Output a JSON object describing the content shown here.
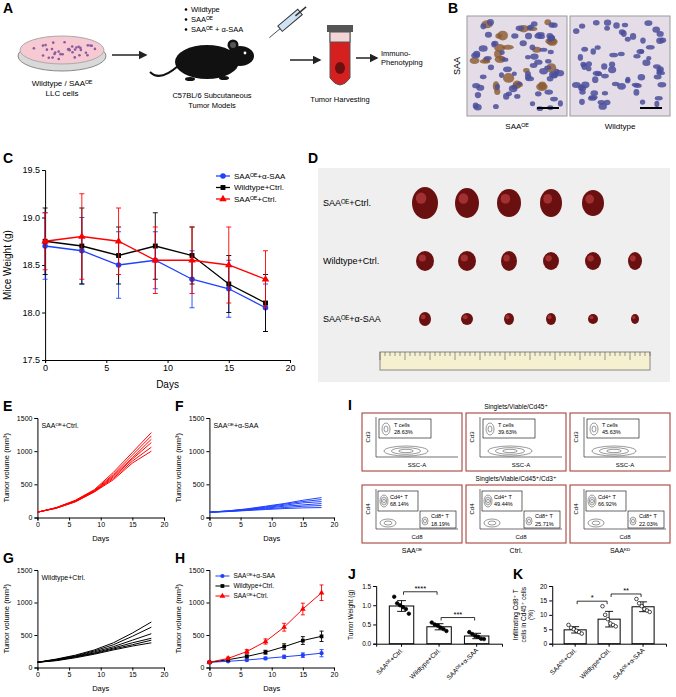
{
  "schematic": {
    "panel": "A",
    "cell_label": [
      "Wildtype / SAAᴼᴱ",
      "LLC cells"
    ],
    "groups": [
      "Wildtype",
      "SAAᴼᴱ",
      "SAAᴼᴱ + α-SAA"
    ],
    "mouse_label": [
      "C57BL/6 Subcutaneous",
      "Tumor Models"
    ],
    "harvest_label": "Tumor Harvesting",
    "readout_label": [
      "Immuno-",
      "Phenotyping"
    ]
  },
  "ihc": {
    "panel": "B",
    "stain": "SAA",
    "images": [
      "SAAᴼᴱ",
      "Wildtype"
    ]
  },
  "tumor_photo": {
    "panel": "D",
    "rows": [
      "SAAᴼᴱ+Ctrl.",
      "Wildtype+Ctrl.",
      "SAAᴼᴱ+α-SAA"
    ]
  },
  "flow": {
    "panel": "I",
    "samples": [
      "SAAᴼᴱ",
      "Ctrl.",
      "SAAᴷᴰ"
    ],
    "rows": [
      {
        "gate": "Singlets/Viable/Cd45⁺",
        "x_label": "SSC-A",
        "y_label": "Cd3",
        "plots": [
          {
            "populations": [
              {
                "name": "T cells",
                "percent": "28.63%"
              }
            ]
          },
          {
            "populations": [
              {
                "name": "T cells",
                "percent": "39.63%"
              }
            ]
          },
          {
            "populations": [
              {
                "name": "T cells",
                "percent": "45.63%"
              }
            ]
          }
        ]
      },
      {
        "gate": "Singlets/Viable/Cd45⁺/Cd3⁺",
        "x_label": "Cd8",
        "y_label": "Cd4",
        "plots": [
          {
            "populations": [
              {
                "name": "Cd4⁺ T",
                "percent": "68.14%"
              },
              {
                "name": "Cd8⁺ T",
                "percent": "18.19%"
              }
            ]
          },
          {
            "populations": [
              {
                "name": "Cd4⁺ T",
                "percent": "49.44%"
              },
              {
                "name": "Cd8⁺ T",
                "percent": "25.71%"
              }
            ]
          },
          {
            "populations": [
              {
                "name": "Cd4⁺ T",
                "percent": "66.92%"
              },
              {
                "name": "Cd8⁺ T",
                "percent": "22.03%"
              }
            ]
          }
        ]
      }
    ]
  },
  "chart_data": [
    {
      "panel": "C",
      "type": "line",
      "x_label": "Days",
      "y_label": "Mice Weight (g)",
      "x": [
        0,
        3,
        6,
        9,
        12,
        15,
        18
      ],
      "xlim": [
        0,
        20
      ],
      "xticks": [
        0,
        5,
        10,
        15,
        20
      ],
      "ylim": [
        17.5,
        19.5
      ],
      "yticks": [
        17.5,
        {
          "value": 18,
          "label": "18.0"
        },
        18.5,
        {
          "value": 19,
          "label": "19.0"
        },
        19.5
      ],
      "legend": "upper right",
      "series": [
        {
          "name": "SAAᴼᴱ+α-SAA",
          "color": "#2040ff",
          "marker": "circle",
          "values": [
            18.7,
            18.65,
            18.5,
            18.55,
            18.35,
            18.25,
            18.05
          ],
          "errors": [
            0.35,
            0.35,
            0.35,
            0.3,
            0.3,
            0.3,
            0.25
          ]
        },
        {
          "name": "Wildtype+Ctrl.",
          "color": "#000000",
          "marker": "square",
          "values": [
            18.75,
            18.7,
            18.6,
            18.7,
            18.6,
            18.3,
            18.1
          ],
          "errors": [
            0.35,
            0.4,
            0.3,
            0.35,
            0.3,
            0.3,
            0.3
          ]
        },
        {
          "name": "SAAᴼᴱ+Ctrl.",
          "color": "#ff0000",
          "marker": "triangle",
          "values": [
            18.75,
            18.8,
            18.75,
            18.55,
            18.55,
            18.5,
            18.35
          ],
          "errors": [
            0.3,
            0.45,
            0.35,
            0.35,
            0.35,
            0.4,
            0.3
          ]
        }
      ]
    },
    {
      "panel": "E",
      "type": "line",
      "annotation": "SAAᴼᴱ+Ctrl.",
      "color": "#ff0000",
      "x_label": "Days",
      "y_label": "Tumor volume (mm³)",
      "x": [
        0,
        3,
        6,
        9,
        12,
        15,
        18
      ],
      "xlim": [
        0,
        20
      ],
      "xticks": [
        0,
        5,
        10,
        15,
        20
      ],
      "ylim": [
        0,
        1500
      ],
      "yticks": [
        0,
        500,
        1000,
        1500
      ],
      "series": [
        {
          "values": [
            80,
            150,
            260,
            420,
            680,
            980,
            1280
          ]
        },
        {
          "values": [
            80,
            150,
            255,
            410,
            650,
            940,
            1230
          ]
        },
        {
          "values": [
            80,
            145,
            250,
            400,
            630,
            900,
            1180
          ]
        },
        {
          "values": [
            80,
            145,
            245,
            395,
            610,
            880,
            1130
          ]
        },
        {
          "values": [
            80,
            140,
            240,
            390,
            590,
            850,
            1060
          ]
        },
        {
          "values": [
            80,
            140,
            235,
            385,
            570,
            820,
            1000
          ]
        }
      ]
    },
    {
      "panel": "F",
      "type": "line",
      "annotation": "SAAᴼᴱ+α-SAA",
      "color": "#2040ff",
      "x_label": "Days",
      "y_label": "Tumor volume (mm³)",
      "x": [
        0,
        3,
        6,
        9,
        12,
        15,
        18
      ],
      "xlim": [
        0,
        20
      ],
      "xticks": [
        0,
        5,
        10,
        15,
        20
      ],
      "ylim": [
        0,
        1500
      ],
      "yticks": [
        0,
        500,
        1000,
        1500
      ],
      "series": [
        {
          "values": [
            80,
            100,
            130,
            170,
            210,
            260,
            300
          ]
        },
        {
          "values": [
            80,
            100,
            125,
            160,
            200,
            240,
            270
          ]
        },
        {
          "values": [
            80,
            95,
            120,
            150,
            185,
            220,
            240
          ]
        },
        {
          "values": [
            80,
            95,
            115,
            140,
            170,
            190,
            210
          ]
        },
        {
          "values": [
            80,
            90,
            110,
            130,
            150,
            170,
            180
          ]
        },
        {
          "values": [
            80,
            90,
            105,
            120,
            135,
            145,
            150
          ]
        }
      ]
    },
    {
      "panel": "G",
      "type": "line",
      "annotation": "Wildtype+Ctrl.",
      "color": "#000000",
      "x_label": "Days",
      "y_label": "Tumor volume (mm³)",
      "x": [
        0,
        3,
        6,
        9,
        12,
        15,
        18
      ],
      "xlim": [
        0,
        20
      ],
      "xticks": [
        0,
        5,
        10,
        15,
        20
      ],
      "ylim": [
        0,
        1500
      ],
      "yticks": [
        0,
        500,
        1000,
        1500
      ],
      "series": [
        {
          "values": [
            80,
            130,
            190,
            270,
            380,
            530,
            700
          ]
        },
        {
          "values": [
            80,
            125,
            180,
            255,
            350,
            480,
            620
          ]
        },
        {
          "values": [
            80,
            120,
            170,
            240,
            320,
            420,
            520
          ]
        },
        {
          "values": [
            80,
            115,
            165,
            225,
            300,
            380,
            450
          ]
        },
        {
          "values": [
            80,
            110,
            160,
            215,
            285,
            350,
            420
          ]
        },
        {
          "values": [
            80,
            105,
            150,
            205,
            270,
            330,
            380
          ]
        }
      ]
    },
    {
      "panel": "H",
      "type": "line",
      "x_label": "Days",
      "y_label": "Tumor volume (mm³)",
      "x": [
        0,
        3,
        6,
        9,
        12,
        15,
        18
      ],
      "xlim": [
        0,
        20
      ],
      "xticks": [
        0,
        5,
        10,
        15,
        20
      ],
      "ylim": [
        0,
        1500
      ],
      "yticks": [
        0,
        500,
        1000,
        1500
      ],
      "legend": "upper left",
      "series": [
        {
          "name": "SAAᴼᴱ+α-SAA",
          "color": "#2040ff",
          "marker": "circle",
          "values": [
            80,
            95,
            115,
            140,
            165,
            190,
            220
          ],
          "errors": [
            5,
            10,
            15,
            20,
            25,
            35,
            55
          ]
        },
        {
          "name": "Wildtype+Ctrl.",
          "color": "#000000",
          "marker": "square",
          "values": [
            80,
            120,
            170,
            235,
            320,
            415,
            480
          ],
          "errors": [
            10,
            15,
            20,
            30,
            45,
            60,
            80
          ]
        },
        {
          "name": "SAAᴼᴱ+Ctrl.",
          "color": "#ff0000",
          "marker": "triangle",
          "values": [
            80,
            140,
            245,
            400,
            620,
            900,
            1150
          ],
          "errors": [
            10,
            20,
            30,
            40,
            60,
            90,
            120
          ]
        }
      ]
    },
    {
      "panel": "J",
      "type": "bar",
      "y_label": "Tumor Weight (g)",
      "categories": [
        "SAAᴼᴱ+Ctrl.",
        "Wildtype+Ctrl.",
        "SAAᴼᴱ+α-SAA"
      ],
      "values": [
        0.98,
        0.44,
        0.2
      ],
      "errors": [
        0.14,
        0.08,
        0.07
      ],
      "points": [
        [
          1.22,
          1.05,
          1.0,
          0.95,
          0.9,
          0.78
        ],
        [
          0.55,
          0.5,
          0.47,
          0.42,
          0.38,
          0.33
        ],
        [
          0.3,
          0.25,
          0.2,
          0.18,
          0.13,
          0.12
        ]
      ],
      "color": "#ffffff",
      "marker": "circle",
      "ylim": [
        0,
        1.5
      ],
      "yticks": [
        {
          "value": 0,
          "label": "0.0"
        },
        0.5,
        {
          "value": 1,
          "label": "1.0"
        },
        1.5
      ],
      "comparisons": [
        {
          "from": 0,
          "to": 1,
          "label": "****"
        },
        {
          "from": 1,
          "to": 2,
          "label": "***"
        }
      ]
    },
    {
      "panel": "K",
      "type": "bar",
      "y_label": "Infiltrating Cd8⁺ T cells in Cd45⁺ cells (%)",
      "categories": [
        "SAAᴼᴱ+Ctrl.",
        "Wildtype+Ctrl.",
        "SAAᴼᴱ+α-SAA"
      ],
      "values": [
        4.8,
        8.5,
        12.8
      ],
      "errors": [
        1.1,
        2.7,
        1.7
      ],
      "points": [
        [
          6.5,
          5.5,
          5,
          4.5,
          4,
          3.5
        ],
        [
          13,
          10,
          8.5,
          7,
          6.5,
          6
        ],
        [
          15.5,
          14,
          13,
          12,
          11.5,
          11
        ]
      ],
      "color": "#ffffff",
      "marker": "open-circle",
      "ylim": [
        0,
        20
      ],
      "yticks": [
        0,
        5,
        10,
        15,
        20
      ],
      "comparisons": [
        {
          "from": 0,
          "to": 1,
          "label": "*"
        },
        {
          "from": 1,
          "to": 2,
          "label": "**"
        }
      ]
    }
  ]
}
